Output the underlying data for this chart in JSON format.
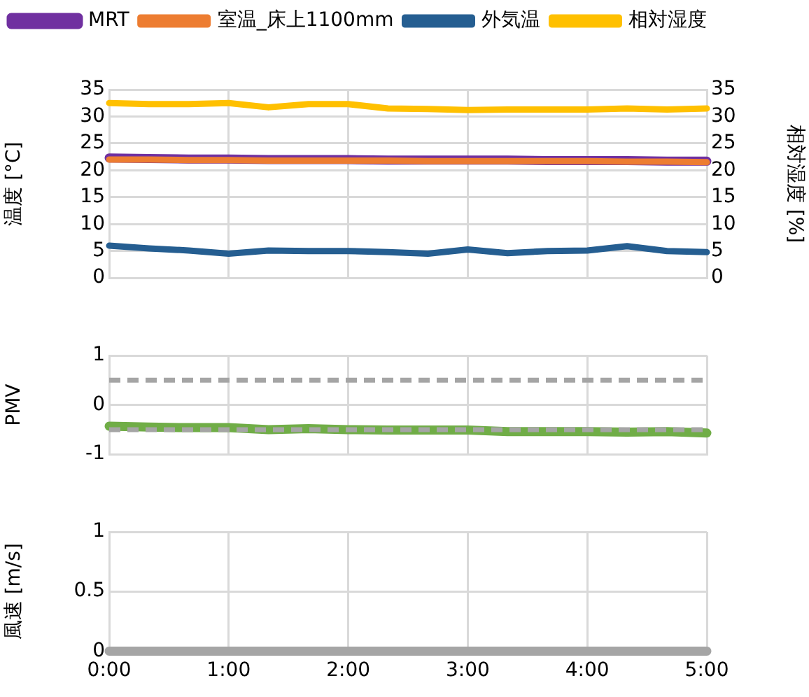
{
  "chart_data": [
    {
      "type": "line",
      "ylabel": "温度 [°C]",
      "y2label": "相対湿度 [%]",
      "legend": "top",
      "grid": true,
      "tick_labels": "y",
      "marker": "none",
      "line_style": "solid",
      "x": [
        0,
        0.333,
        0.667,
        1,
        1.333,
        1.667,
        2,
        2.333,
        2.667,
        3,
        3.333,
        3.667,
        4,
        4.333,
        4.667,
        5
      ],
      "xlim": [
        0,
        5
      ],
      "xticks": [
        0,
        1,
        2,
        3,
        4,
        5
      ],
      "ylim": [
        0,
        35
      ],
      "yticks": [
        0,
        5,
        10,
        15,
        20,
        25,
        30,
        35
      ],
      "y2lim": [
        0,
        35
      ],
      "y2ticks": [
        0,
        5,
        10,
        15,
        20,
        25,
        30,
        35
      ],
      "series": [
        {
          "name": "MRT",
          "color": "#7030a0",
          "values": [
            22.3,
            22.2,
            22.1,
            22.1,
            22.0,
            22.0,
            22.0,
            21.9,
            21.9,
            21.9,
            21.9,
            21.8,
            21.8,
            21.8,
            21.7,
            21.7
          ]
        },
        {
          "name": "室温_床上1100mm",
          "color": "#ed7d31",
          "values": [
            22.0,
            22.0,
            21.9,
            21.9,
            21.8,
            21.8,
            21.8,
            21.8,
            21.7,
            21.7,
            21.7,
            21.7,
            21.7,
            21.6,
            21.6,
            21.5
          ]
        },
        {
          "name": "外気温",
          "color": "#255e91",
          "values": [
            6.0,
            5.5,
            5.1,
            4.5,
            5.1,
            5.0,
            5.0,
            4.8,
            4.5,
            5.3,
            4.6,
            5.0,
            5.1,
            5.9,
            5.0,
            4.8
          ]
        },
        {
          "name": "相対湿度",
          "color": "#ffc000",
          "axis": "y2",
          "values": [
            32.5,
            32.3,
            32.3,
            32.5,
            31.7,
            32.3,
            32.3,
            31.5,
            31.4,
            31.2,
            31.3,
            31.3,
            31.3,
            31.5,
            31.3,
            31.5
          ]
        }
      ]
    },
    {
      "type": "line",
      "ylabel": "PMV",
      "grid": true,
      "tick_labels": "y",
      "marker": "none",
      "line_style": "solid",
      "x": [
        0,
        0.333,
        0.667,
        1,
        1.333,
        1.667,
        2,
        2.333,
        2.667,
        3,
        3.333,
        3.667,
        4,
        4.333,
        4.667,
        5
      ],
      "xlim": [
        0,
        5
      ],
      "xticks": [
        0,
        1,
        2,
        3,
        4,
        5
      ],
      "ylim": [
        -1,
        1
      ],
      "yticks": [
        -1,
        0,
        1
      ],
      "ref_lines": [
        {
          "axis": "y",
          "value": 0.5,
          "color": "#a5a5a5",
          "line_style": "dashed"
        },
        {
          "axis": "y",
          "value": -0.5,
          "color": "#a5a5a5",
          "line_style": "dashed"
        }
      ],
      "series": [
        {
          "color": "#70ad47",
          "values": [
            -0.43,
            -0.45,
            -0.46,
            -0.46,
            -0.5,
            -0.48,
            -0.5,
            -0.51,
            -0.51,
            -0.51,
            -0.54,
            -0.54,
            -0.54,
            -0.55,
            -0.54,
            -0.57
          ]
        }
      ]
    },
    {
      "type": "line",
      "ylabel": "風速 [m/s]",
      "grid": true,
      "marker": "none",
      "line_style": "solid",
      "x": [
        0,
        0.333,
        0.667,
        1,
        1.333,
        1.667,
        2,
        2.333,
        2.667,
        3,
        3.333,
        3.667,
        4,
        4.333,
        4.667,
        5
      ],
      "xlim": [
        0,
        5
      ],
      "xticks": [
        {
          "value": 0,
          "label": "0:00"
        },
        {
          "value": 1,
          "label": "1:00"
        },
        {
          "value": 2,
          "label": "2:00"
        },
        {
          "value": 3,
          "label": "3:00"
        },
        {
          "value": 4,
          "label": "4:00"
        },
        {
          "value": 5,
          "label": "5:00"
        }
      ],
      "ylim": [
        0,
        1
      ],
      "yticks": [
        0,
        0.5,
        1
      ],
      "series": [
        {
          "color": "#a5a5a5",
          "values": [
            0,
            0,
            0,
            0,
            0,
            0,
            0,
            0,
            0,
            0,
            0,
            0,
            0,
            0,
            0,
            0
          ]
        }
      ]
    }
  ]
}
